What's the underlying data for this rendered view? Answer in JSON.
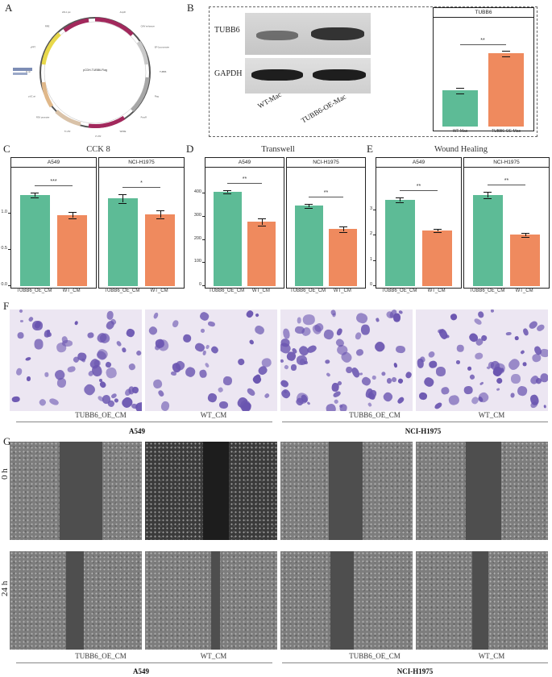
{
  "colors": {
    "green": "#5dbb96",
    "orange": "#ef8a5e",
    "purple": "#6a55b0",
    "lilac": "#ece6f2",
    "gap": "#4e4e4e",
    "cells": "#8a8a8a"
  },
  "panels": {
    "A": "A",
    "B": "B",
    "C": "C",
    "D": "D",
    "E": "E",
    "F": "F",
    "G": "G"
  },
  "plasmid": {
    "title": "pCDH-TUBB6-Flag",
    "features": [
      "SV40 ori",
      "AmpR",
      "CMV enhancer",
      "EF-1a promoter",
      "TUBB6",
      "Flag",
      "PuroR",
      "WPRE",
      "3' LTR",
      "5' LTR",
      "RSV promoter",
      "pUC ori",
      "f1 ori",
      "cPPT",
      "RRE",
      "HIV-1 psi"
    ]
  },
  "blot": {
    "rows": [
      "TUBB6",
      "GAPDH"
    ],
    "lanes": [
      "WT-Mac",
      "TUBB6-OE-Mac"
    ]
  },
  "bchart": {
    "strip": "TUBB6",
    "sig": "**",
    "categories": [
      "WT-Mac",
      "TUBB6-OE-Mac"
    ],
    "values": [
      0.42,
      0.85
    ],
    "errors": [
      0.03,
      0.03
    ],
    "ylim": [
      0,
      1.1
    ]
  },
  "C": {
    "title": "CCK 8",
    "facets": [
      {
        "strip": "A549",
        "sig": "***",
        "categories": [
          "TUBB6_OE_CM",
          "WT_CM"
        ],
        "values": [
          1.26,
          0.98
        ],
        "errors": [
          0.03,
          0.04
        ]
      },
      {
        "strip": "NCI-H1975",
        "sig": "*",
        "categories": [
          "TUBB6_OE_CM",
          "WT_CM"
        ],
        "values": [
          1.21,
          0.99
        ],
        "errors": [
          0.06,
          0.05
        ]
      }
    ],
    "yticks": [
      "0.0",
      "0.5",
      "1.0"
    ],
    "ylim": [
      0,
      1.4
    ]
  },
  "D": {
    "title": "Transwell",
    "facets": [
      {
        "strip": "A549",
        "sig": "**",
        "categories": [
          "TUBB6_OE_CM",
          "WT_CM"
        ],
        "values": [
          410,
          278
        ],
        "errors": [
          6,
          14
        ]
      },
      {
        "strip": "NCI-H1975",
        "sig": "**",
        "categories": [
          "TUBB6_OE_CM",
          "WT_CM"
        ],
        "values": [
          350,
          248
        ],
        "errors": [
          7,
          9
        ]
      }
    ],
    "yticks": [
      "0",
      "100",
      "200",
      "300",
      "400"
    ],
    "ylim": [
      0,
      440
    ]
  },
  "E": {
    "title": "Wound Healing",
    "facets": [
      {
        "strip": "A549",
        "sig": "**",
        "categories": [
          "TUBB6_OE_CM",
          "WT_CM"
        ],
        "values": [
          3.4,
          2.2
        ],
        "errors": [
          0.08,
          0.04
        ]
      },
      {
        "strip": "NCI-H1975",
        "sig": "**",
        "categories": [
          "TUBB6_OE_CM",
          "WT_CM"
        ],
        "values": [
          3.6,
          2.03
        ],
        "errors": [
          0.1,
          0.05
        ]
      }
    ],
    "yticks": [
      "0",
      "1",
      "2",
      "3"
    ],
    "ylim": [
      0,
      4
    ]
  },
  "F": {
    "groups": [
      "TUBB6_OE_CM",
      "WT_CM",
      "TUBB6_OE_CM",
      "WT_CM"
    ],
    "cells": [
      "A549",
      "NCI-H1975"
    ]
  },
  "G": {
    "rows": [
      "0 h",
      "24 h"
    ],
    "groups": [
      "TUBB6_OE_CM",
      "WT_CM",
      "TUBB6_OE_CM",
      "WT_CM"
    ],
    "cells": [
      "A549",
      "NCI-H1975"
    ]
  }
}
